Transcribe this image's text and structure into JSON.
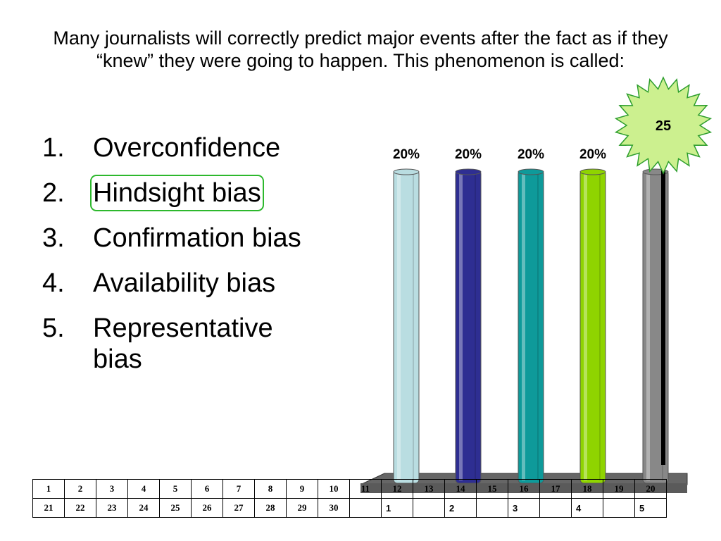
{
  "question": "Many journalists will correctly predict major events after the fact as if they “knew” they were going to happen. This phenomenon is called:",
  "answers": [
    {
      "num": "1.",
      "text": "Overconfidence"
    },
    {
      "num": "2.",
      "text": "Hindsight bias"
    },
    {
      "num": "3.",
      "text": "Confirmation bias"
    },
    {
      "num": "4.",
      "text": "Availability bias"
    },
    {
      "num": "5.",
      "text": "Representative bias"
    }
  ],
  "countdown": "25",
  "chart_data": {
    "type": "bar",
    "categories": [
      "1",
      "2",
      "3",
      "4",
      "5"
    ],
    "values": [
      20,
      20,
      20,
      20,
      20
    ],
    "value_labels": [
      "20%",
      "20%",
      "20%",
      "20%",
      ""
    ],
    "colors": [
      "#b9dde1",
      "#2e2e92",
      "#0e9a9a",
      "#8fd400",
      "#888888"
    ],
    "ylim": [
      0,
      20
    ],
    "grid": false
  },
  "grid": {
    "row1": [
      "1",
      "2",
      "3",
      "4",
      "5",
      "6",
      "7",
      "8",
      "9",
      "10",
      "11",
      "12",
      "13",
      "14",
      "15",
      "16",
      "17",
      "18",
      "19",
      "20"
    ],
    "row2": [
      "21",
      "22",
      "23",
      "24",
      "25",
      "26",
      "27",
      "28",
      "29",
      "30"
    ]
  }
}
